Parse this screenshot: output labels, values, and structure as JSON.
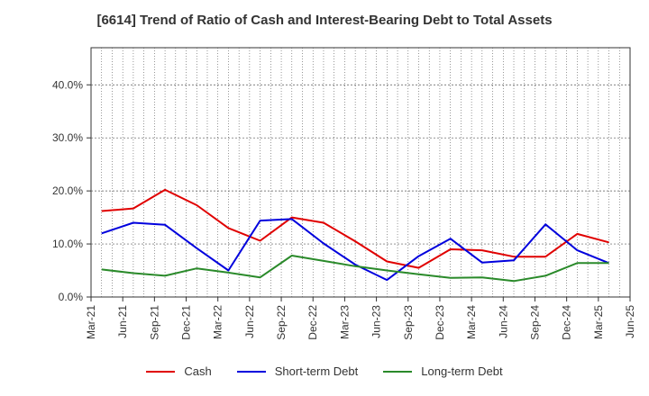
{
  "chart_data": {
    "type": "line",
    "title": "[6614]  Trend of Ratio of Cash and Interest-Bearing Debt to Total Assets",
    "xlabel": "",
    "ylabel": "",
    "ylim": [
      0,
      0.47
    ],
    "yticks": [
      0,
      0.1,
      0.2,
      0.3,
      0.4
    ],
    "ytick_labels": [
      "0.0%",
      "10.0%",
      "20.0%",
      "30.0%",
      "40.0%"
    ],
    "x_tick_labels": [
      "Mar-21",
      "Jun-21",
      "Sep-21",
      "Dec-21",
      "Mar-22",
      "Jun-22",
      "Sep-22",
      "Dec-22",
      "Mar-23",
      "Jun-23",
      "Sep-23",
      "Dec-23",
      "Mar-24",
      "Jun-24",
      "Sep-24",
      "Dec-24",
      "Mar-25",
      "Jun-25"
    ],
    "x": [
      "Apr-21",
      "May-21",
      "Jun-21",
      "Jul-21",
      "Aug-21",
      "Sep-21",
      "Oct-21",
      "Nov-21",
      "Dec-21",
      "Jan-22",
      "Feb-22",
      "Mar-22",
      "Apr-22",
      "May-22",
      "Jun-22",
      "Jul-22",
      "Aug-22",
      "Sep-22",
      "Oct-22",
      "Nov-22",
      "Dec-22",
      "Jan-23",
      "Feb-23",
      "Mar-23",
      "Apr-23",
      "May-23",
      "Jun-23",
      "Jul-23",
      "Aug-23",
      "Sep-23",
      "Oct-23",
      "Nov-23",
      "Dec-23",
      "Jan-24",
      "Feb-24",
      "Mar-24",
      "Apr-24",
      "May-24",
      "Jun-24",
      "Jul-24",
      "Aug-24",
      "Sep-24",
      "Oct-24",
      "Nov-24",
      "Dec-24",
      "Jan-25",
      "Feb-25",
      "Mar-25",
      "Apr-25",
      "May-25",
      "Jun-25"
    ],
    "series": [
      {
        "name": "Cash",
        "color": "#e00000",
        "points": [
          [
            1,
            0.162
          ],
          [
            4,
            0.167
          ],
          [
            7,
            0.202
          ],
          [
            10,
            0.173
          ],
          [
            13,
            0.13
          ],
          [
            16,
            0.106
          ],
          [
            19,
            0.15
          ],
          [
            22,
            0.14
          ],
          [
            25,
            0.105
          ],
          [
            28,
            0.067
          ],
          [
            31,
            0.055
          ],
          [
            34,
            0.09
          ],
          [
            37,
            0.088
          ],
          [
            40,
            0.076
          ],
          [
            43,
            0.076
          ],
          [
            46,
            0.119
          ],
          [
            49,
            0.103
          ]
        ]
      },
      {
        "name": "Short-term Debt",
        "color": "#0000dd",
        "points": [
          [
            1,
            0.12
          ],
          [
            4,
            0.14
          ],
          [
            7,
            0.136
          ],
          [
            10,
            0.092
          ],
          [
            13,
            0.05
          ],
          [
            16,
            0.144
          ],
          [
            19,
            0.147
          ],
          [
            22,
            0.101
          ],
          [
            25,
            0.061
          ],
          [
            28,
            0.032
          ],
          [
            31,
            0.077
          ],
          [
            34,
            0.11
          ],
          [
            37,
            0.065
          ],
          [
            40,
            0.069
          ],
          [
            43,
            0.137
          ],
          [
            46,
            0.088
          ],
          [
            49,
            0.064
          ]
        ]
      },
      {
        "name": "Long-term Debt",
        "color": "#2a8a2a",
        "points": [
          [
            1,
            0.052
          ],
          [
            4,
            0.045
          ],
          [
            7,
            0.04
          ],
          [
            10,
            0.054
          ],
          [
            13,
            0.046
          ],
          [
            16,
            0.037
          ],
          [
            19,
            0.078
          ],
          [
            22,
            0.068
          ],
          [
            25,
            0.058
          ],
          [
            28,
            0.05
          ],
          [
            31,
            0.043
          ],
          [
            34,
            0.036
          ],
          [
            37,
            0.037
          ],
          [
            40,
            0.03
          ],
          [
            43,
            0.04
          ],
          [
            46,
            0.064
          ],
          [
            49,
            0.064
          ]
        ]
      }
    ],
    "legend": [
      "Cash",
      "Short-term Debt",
      "Long-term Debt"
    ],
    "legend_position": "bottom",
    "grid": true
  }
}
